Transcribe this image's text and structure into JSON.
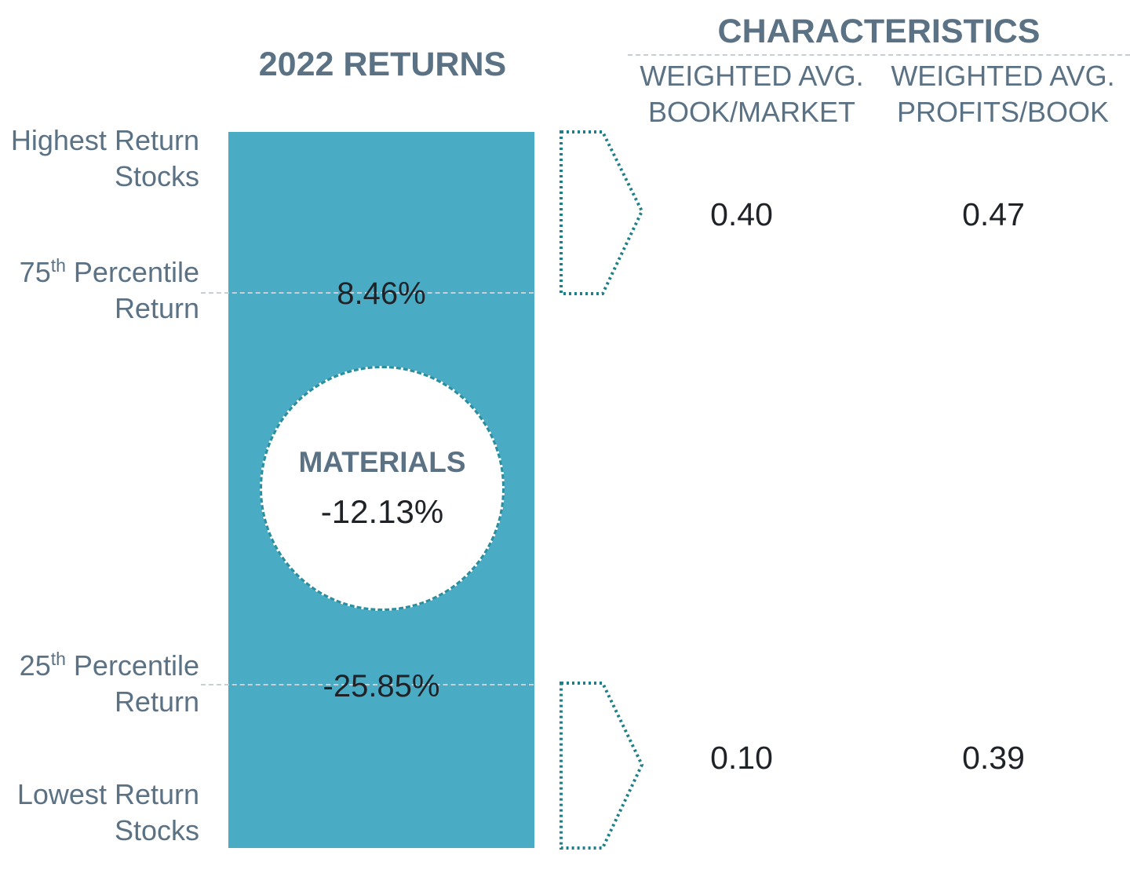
{
  "returns_title": "2022 RETURNS",
  "characteristics": {
    "title": "CHARACTERISTICS",
    "columns": [
      {
        "line1": "WEIGHTED AVG.",
        "line2": "BOOK/MARKET"
      },
      {
        "line1": "WEIGHTED AVG.",
        "line2": "PROFITS/BOOK"
      }
    ]
  },
  "labels": {
    "highest": {
      "line1": "Highest Return",
      "line2": "Stocks"
    },
    "p75": {
      "num": "75",
      "sup": "th",
      "rest": " Percentile",
      "line2": "Return"
    },
    "p25": {
      "num": "25",
      "sup": "th",
      "rest": " Percentile",
      "line2": "Return"
    },
    "lowest": {
      "line1": "Lowest Return",
      "line2": "Stocks"
    }
  },
  "percentiles": {
    "p75_value": "8.46%",
    "p25_value": "-25.85%"
  },
  "sector": {
    "name": "MATERIALS",
    "return": "-12.13%"
  },
  "top_group": {
    "book_market": "0.40",
    "profits_book": "0.47"
  },
  "bottom_group": {
    "book_market": "0.10",
    "profits_book": "0.39"
  },
  "colors": {
    "bar": "#4aabc5",
    "heading": "#5b7184",
    "arrow_outline": "#1f7f86",
    "circle_border": "#2b8f9f"
  }
}
